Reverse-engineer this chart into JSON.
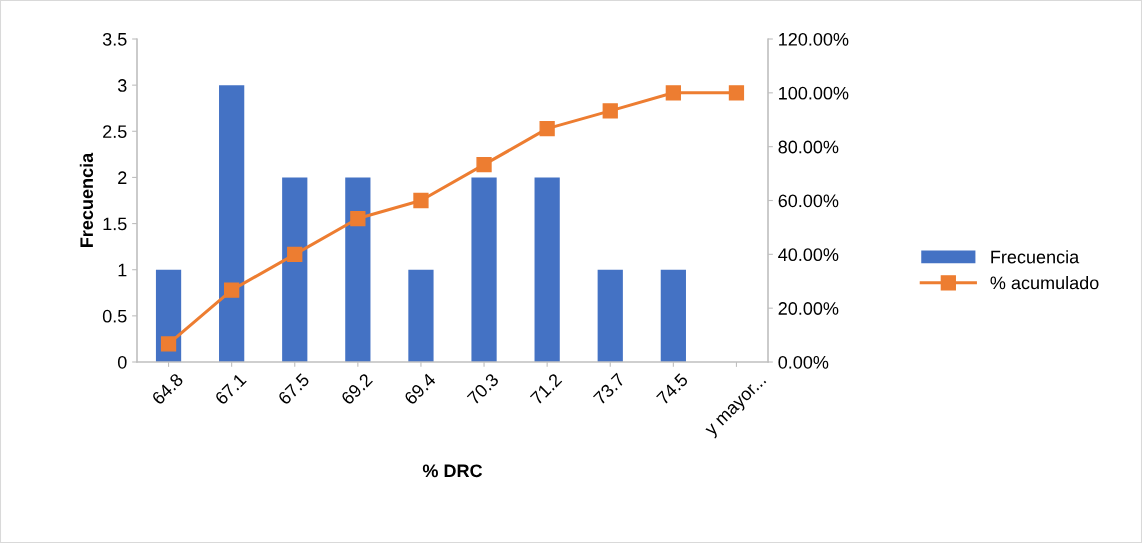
{
  "chart_data": {
    "type": "bar",
    "xlabel": "% DRC",
    "ylabel": "Frecuencia",
    "categories": [
      "64.8",
      "67.1",
      "67.5",
      "69.2",
      "69.4",
      "70.3",
      "71.2",
      "73.7",
      "74.5",
      "y mayor..."
    ],
    "series": [
      {
        "name": "Frecuencia",
        "color": "#4472c4",
        "values": [
          1,
          3,
          2,
          2,
          1,
          2,
          2,
          1,
          1,
          0
        ]
      },
      {
        "name": "% acumulado",
        "type": "line",
        "axis": "y2",
        "color": "#ed7d31",
        "marker": "square",
        "values": [
          6.7,
          26.7,
          40,
          53.3,
          60,
          73.3,
          86.7,
          93.3,
          100,
          100
        ]
      }
    ],
    "ylim": [
      0,
      3.5
    ],
    "yticks": [
      0,
      0.5,
      1,
      1.5,
      2,
      2.5,
      3,
      3.5
    ],
    "y2lim": [
      0,
      120
    ],
    "y2ticks": [
      {
        "value": 0,
        "label": "0.00%"
      },
      {
        "value": 20,
        "label": "20.00%"
      },
      {
        "value": 40,
        "label": "40.00%"
      },
      {
        "value": 60,
        "label": "60.00%"
      },
      {
        "value": 80,
        "label": "80.00%"
      },
      {
        "value": 100,
        "label": "100.00%"
      },
      {
        "value": 120,
        "label": "120.00%"
      }
    ],
    "grid": false,
    "legend": "right"
  }
}
